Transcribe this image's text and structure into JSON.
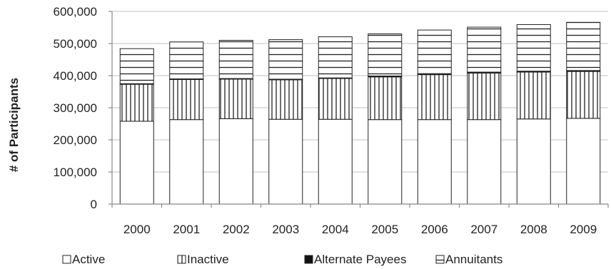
{
  "chart_data": {
    "type": "bar",
    "stacked": true,
    "categories": [
      "2000",
      "2001",
      "2002",
      "2003",
      "2004",
      "2005",
      "2006",
      "2007",
      "2008",
      "2009"
    ],
    "series": [
      {
        "name": "Active",
        "pattern": "blank",
        "values": [
          258000,
          263000,
          266000,
          264000,
          264000,
          263000,
          263000,
          263000,
          265000,
          267000
        ]
      },
      {
        "name": "Inactive",
        "pattern": "vertical",
        "values": [
          115000,
          125000,
          123000,
          123000,
          127000,
          133000,
          140000,
          145000,
          146000,
          146000
        ]
      },
      {
        "name": "Alternate Payees",
        "pattern": "solid",
        "values": [
          2000,
          2000,
          2000,
          2000,
          2000,
          3000,
          3000,
          3000,
          3000,
          3000
        ]
      },
      {
        "name": "Annuitants",
        "pattern": "horizontal",
        "values": [
          109000,
          115000,
          119000,
          123000,
          128000,
          131000,
          136000,
          140000,
          145000,
          150000
        ]
      }
    ],
    "ylabel": "# of Participants",
    "xlabel": "",
    "ylim": [
      0,
      600000
    ],
    "yticks": [
      0,
      100000,
      200000,
      300000,
      400000,
      500000,
      600000
    ],
    "ytick_labels": [
      "0",
      "100,000",
      "200,000",
      "300,000",
      "400,000",
      "500,000",
      "600,000"
    ],
    "grid": true,
    "legend_position": "bottom",
    "colors": {
      "stroke": "#222222",
      "grid": "#c0c0c0",
      "fill": "#ffffff",
      "solid": "#111111"
    }
  }
}
